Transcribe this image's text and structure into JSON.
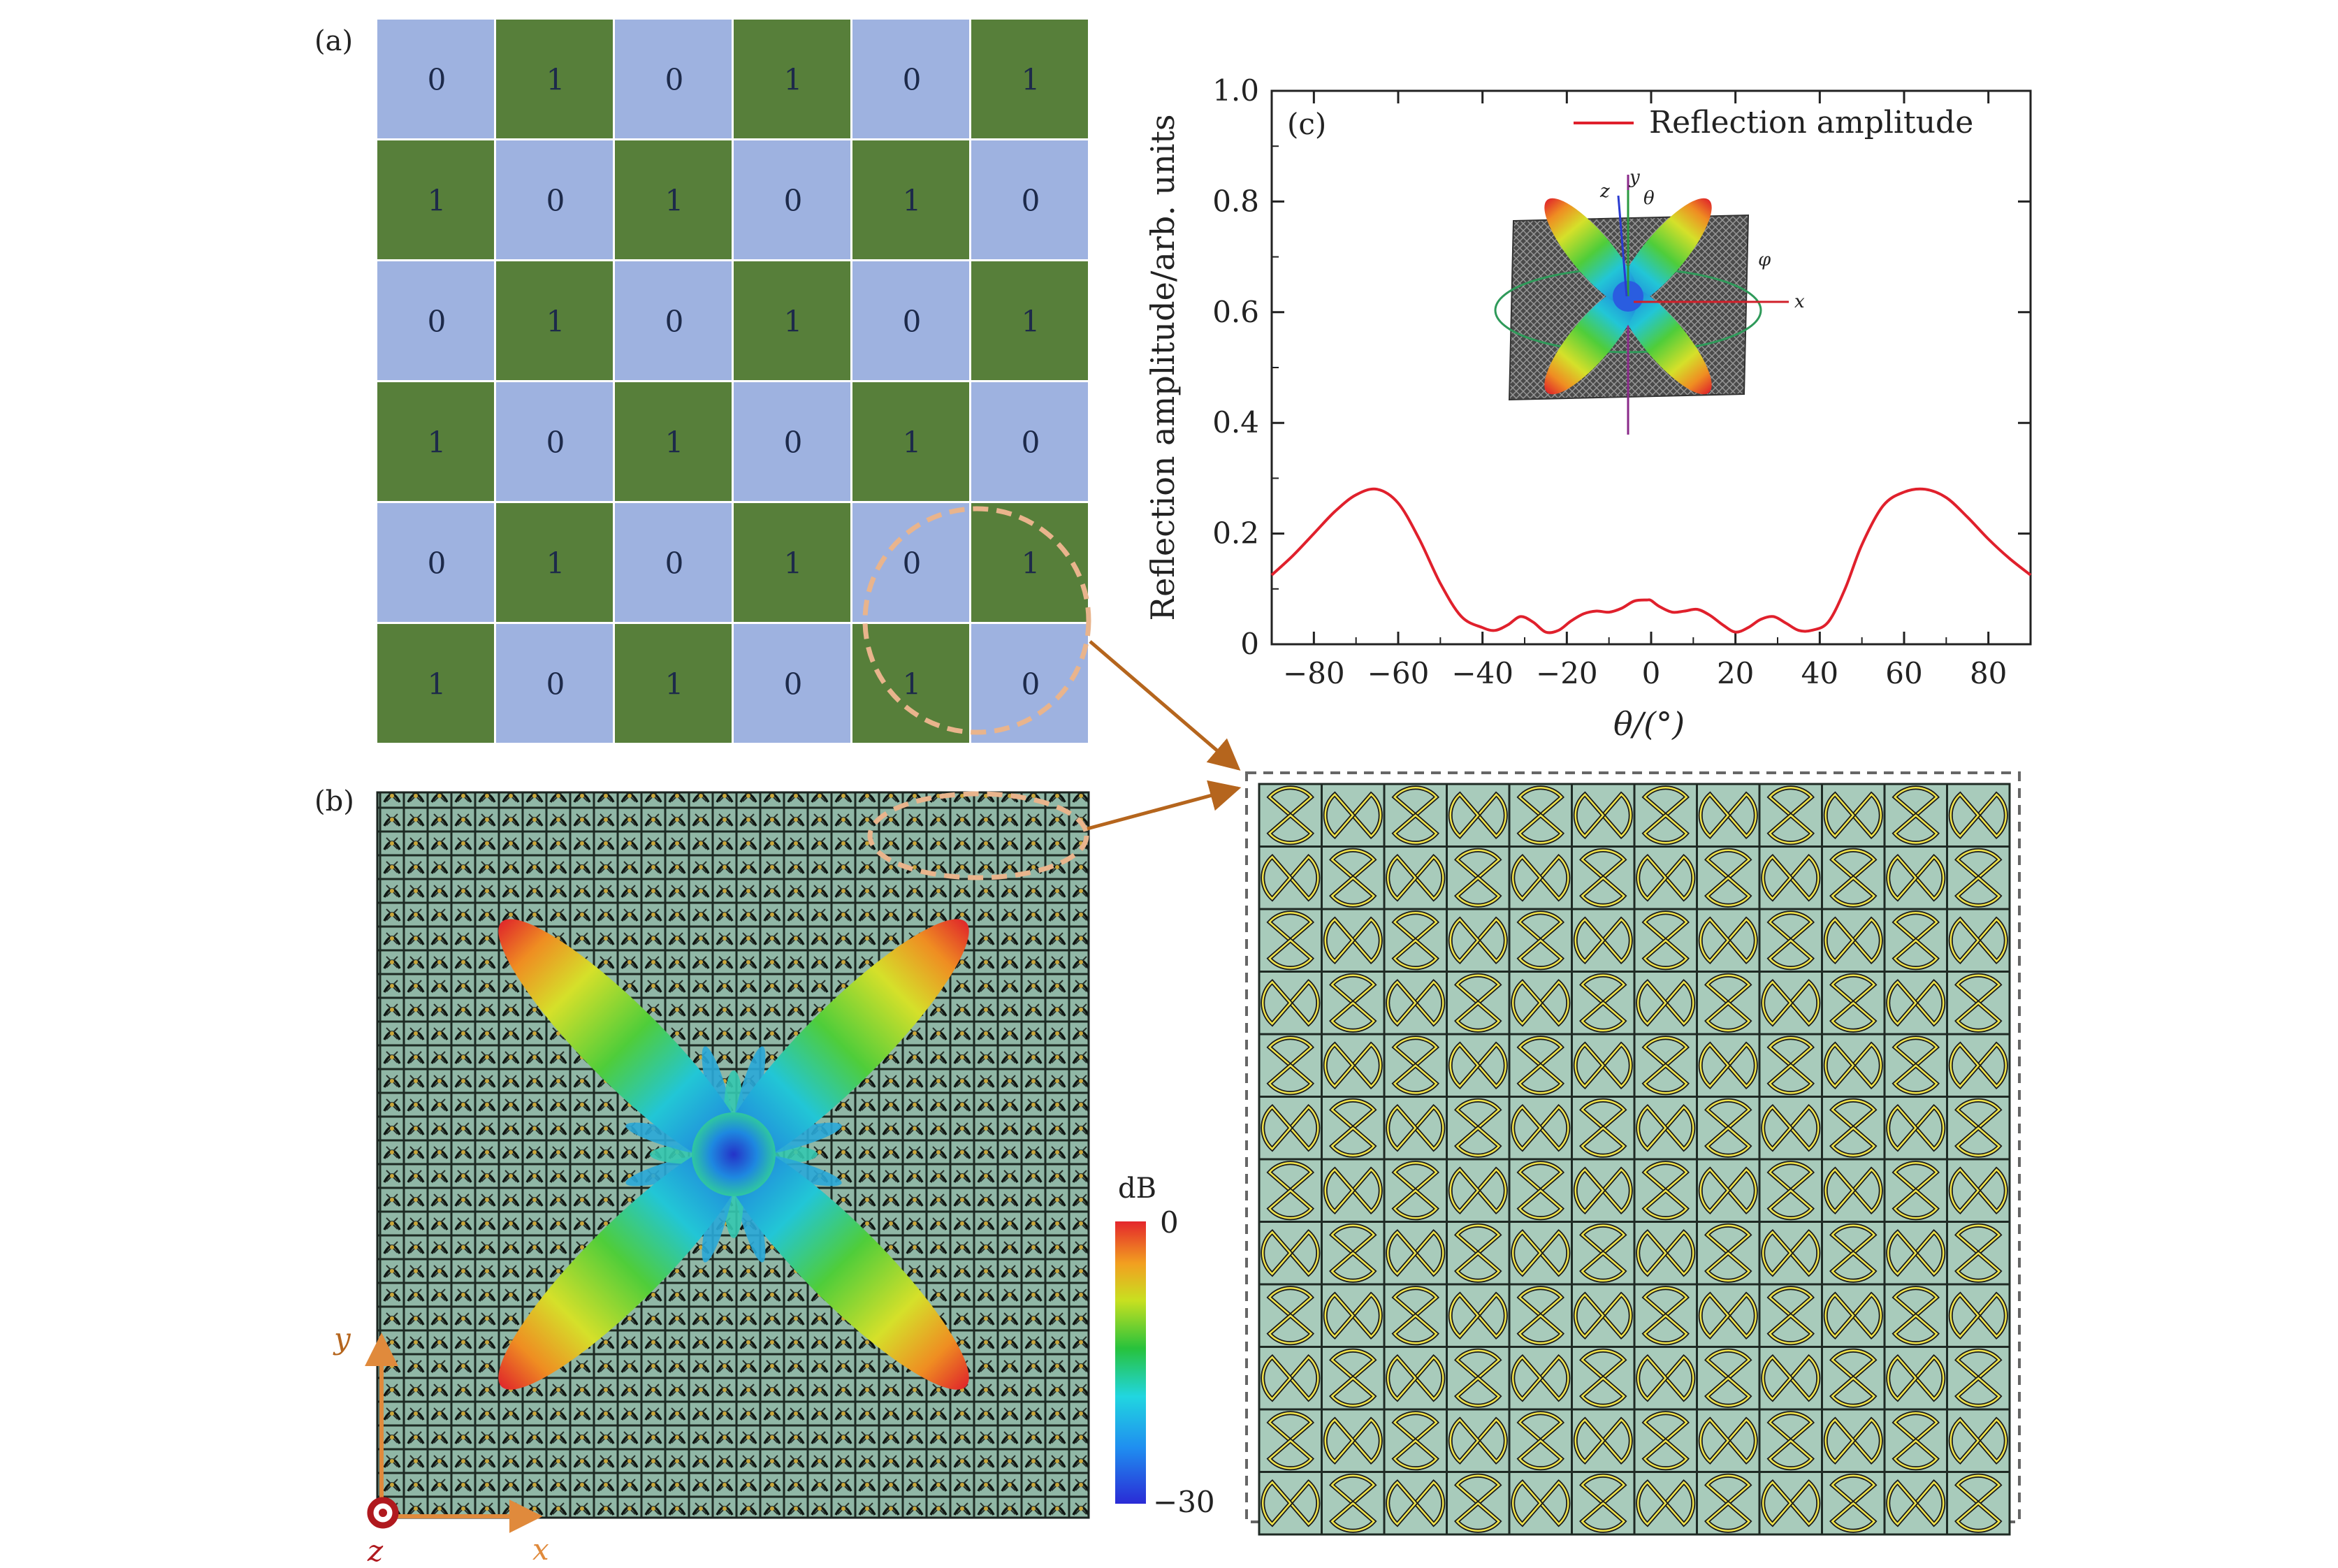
{
  "panels": {
    "a_label": "(a)",
    "b_label": "(b)",
    "c_label": "(c)"
  },
  "coding_matrix": [
    [
      "0",
      "1",
      "0",
      "1",
      "0",
      "1"
    ],
    [
      "1",
      "0",
      "1",
      "0",
      "1",
      "0"
    ],
    [
      "0",
      "1",
      "0",
      "1",
      "0",
      "1"
    ],
    [
      "1",
      "0",
      "1",
      "0",
      "1",
      "0"
    ],
    [
      "0",
      "1",
      "0",
      "1",
      "0",
      "1"
    ],
    [
      "1",
      "0",
      "1",
      "0",
      "1",
      "0"
    ]
  ],
  "colors": {
    "state_0": "#9eb2e0",
    "state_1": "#577f3a",
    "curve": "#e0202c",
    "annotation": "#e9b48c",
    "arrow": "#b5651d",
    "unit_bg": "#a8cbbb",
    "unit_pattern": "#f0e34a"
  },
  "axes_b": {
    "y": "y",
    "x": "x",
    "z": "z"
  },
  "colorbar": {
    "unit": "dB",
    "max": "0",
    "min": "−30"
  },
  "chart_data": {
    "type": "line",
    "legend": [
      "Reflection amplitude"
    ],
    "legend_position": "top-right",
    "xlabel": "θ/(°)",
    "ylabel": "Reflection amplitude/arb. units",
    "xlim": [
      -90,
      90
    ],
    "ylim": [
      0,
      1.0
    ],
    "x_ticks": [
      "−80",
      "−60",
      "−40",
      "−20",
      "0",
      "20",
      "40",
      "60",
      "80"
    ],
    "x_tick_values": [
      -80,
      -60,
      -40,
      -20,
      0,
      20,
      40,
      60,
      80
    ],
    "y_ticks": [
      "0",
      "0.2",
      "0.4",
      "0.6",
      "0.8",
      "1.0"
    ],
    "y_tick_values": [
      0,
      0.2,
      0.4,
      0.6,
      0.8,
      1.0
    ],
    "series": [
      {
        "name": "Reflection amplitude",
        "x": [
          -90,
          -85,
          -80,
          -75,
          -70,
          -65,
          -60,
          -55,
          -50,
          -45,
          -40,
          -37,
          -34,
          -31,
          -28,
          -25,
          -22,
          -19,
          -16,
          -13,
          -10,
          -7,
          -4,
          -1,
          0,
          2,
          5,
          8,
          11,
          14,
          17,
          20,
          23,
          26,
          29,
          32,
          35,
          38,
          42,
          46,
          50,
          55,
          60,
          65,
          70,
          75,
          80,
          85,
          90
        ],
        "y": [
          0.125,
          0.16,
          0.2,
          0.24,
          0.27,
          0.28,
          0.255,
          0.19,
          0.11,
          0.05,
          0.03,
          0.025,
          0.035,
          0.05,
          0.04,
          0.022,
          0.025,
          0.042,
          0.055,
          0.06,
          0.058,
          0.065,
          0.078,
          0.08,
          0.079,
          0.068,
          0.058,
          0.06,
          0.063,
          0.052,
          0.035,
          0.022,
          0.03,
          0.045,
          0.05,
          0.038,
          0.025,
          0.025,
          0.04,
          0.1,
          0.18,
          0.25,
          0.275,
          0.28,
          0.265,
          0.23,
          0.19,
          0.155,
          0.125
        ]
      }
    ]
  }
}
